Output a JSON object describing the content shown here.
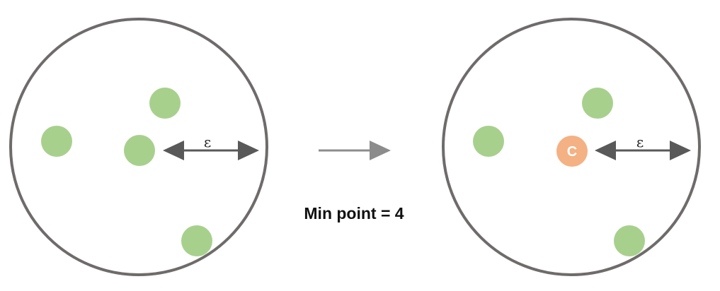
{
  "colors": {
    "circle_stroke": "#6f6b6b",
    "point_green": "#a8d08d",
    "core_orange": "#f4b183",
    "arrow_dark": "#595959",
    "arrow_gray": "#8c8c8c"
  },
  "left_panel": {
    "epsilon_label": "ε"
  },
  "right_panel": {
    "epsilon_label": "ε",
    "core_label": "C"
  },
  "min_point_text": "Min point = 4"
}
